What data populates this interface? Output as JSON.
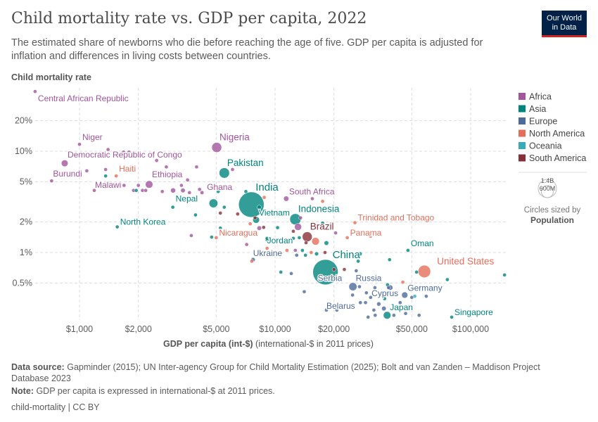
{
  "title": "Child mortality rate vs. GDP per capita, 2022",
  "subtitle": "The estimated share of newborns who die before reaching the age of five. GDP per capita is adjusted for inflation and differences in living costs between countries.",
  "logo": [
    "Our World",
    "in Data"
  ],
  "footer": {
    "source_label": "Data source:",
    "source": "Gapminder (2015); UN Inter-agency Group for Child Mortality Estimation (2025); Bolt and van Zanden – Maddison Project Database 2023",
    "note_label": "Note:",
    "note": "GDP per capita is expressed in international-$ at 2011 prices.",
    "credit": "child-mortality | CC BY"
  },
  "chart_data": {
    "type": "scatter",
    "title": "Child mortality rate vs. GDP per capita, 2022",
    "ylabel": "Child mortality rate",
    "xlabel_bold": "GDP per capita (int-$)",
    "xlabel_rest": "(international-$ in 2011 prices)",
    "x_scale": "log",
    "y_scale": "log",
    "xlim": [
      600,
      150000
    ],
    "ylim": [
      0.22,
      40
    ],
    "grid": true,
    "x_ticks": [
      {
        "v": 1000,
        "label": "$1,000"
      },
      {
        "v": 2000,
        "label": "$2,000"
      },
      {
        "v": 5000,
        "label": "$5,000"
      },
      {
        "v": 10000,
        "label": "$10,000"
      },
      {
        "v": 20000,
        "label": "$20,000"
      },
      {
        "v": 50000,
        "label": "$50,000"
      },
      {
        "v": 100000,
        "label": "$100,000"
      }
    ],
    "y_ticks": [
      {
        "v": 0.5,
        "label": "0.5%"
      },
      {
        "v": 1,
        "label": "1%"
      },
      {
        "v": 2,
        "label": "2%"
      },
      {
        "v": 5,
        "label": "5%"
      },
      {
        "v": 10,
        "label": "10%"
      },
      {
        "v": 20,
        "label": "20%"
      }
    ],
    "legend_position": "right",
    "regions": [
      {
        "name": "Africa",
        "color": "#a2559c"
      },
      {
        "name": "Asia",
        "color": "#00847e"
      },
      {
        "name": "Europe",
        "color": "#4c6a9c"
      },
      {
        "name": "North America",
        "color": "#e56e5a"
      },
      {
        "name": "Oceania",
        "color": "#38aaba"
      },
      {
        "name": "South America",
        "color": "#883039"
      }
    ],
    "size_legend": {
      "values": [
        "1.4B",
        "600M"
      ],
      "caption": "Circles sized by",
      "variable": "Population"
    },
    "points": [
      {
        "name": "Central African Republic",
        "region": "Africa",
        "gdp": 593,
        "cm": 38.9,
        "pop": 5,
        "label": true
      },
      {
        "name": "Niger",
        "region": "Africa",
        "gdp": 1000,
        "cm": 11.7,
        "pop": 26,
        "label": true
      },
      {
        "name": "Democratic Republic of Congo",
        "region": "Africa",
        "gdp": 840,
        "cm": 7.6,
        "pop": 99,
        "label": true
      },
      {
        "name": "Burundi",
        "region": "Africa",
        "gdp": 720,
        "cm": 5.1,
        "pop": 13,
        "label": true
      },
      {
        "name": "Haiti",
        "region": "North America",
        "gdp": 1540,
        "cm": 5.7,
        "pop": 11,
        "label": true
      },
      {
        "name": "Malawi",
        "region": "Africa",
        "gdp": 1190,
        "cm": 4.1,
        "pop": 20,
        "label": true
      },
      {
        "name": "Ethiopia",
        "region": "Africa",
        "gdp": 2270,
        "cm": 4.7,
        "pop": 123,
        "label": true
      },
      {
        "name": "Nigeria",
        "region": "Africa",
        "gdp": 5030,
        "cm": 10.9,
        "pop": 218,
        "label": true
      },
      {
        "name": "Pakistan",
        "region": "Asia",
        "gdp": 5500,
        "cm": 6.1,
        "pop": 235,
        "label": true
      },
      {
        "name": "Ghana",
        "region": "Africa",
        "gdp": 4230,
        "cm": 3.9,
        "pop": 33,
        "label": true
      },
      {
        "name": "Nepal",
        "region": "Asia",
        "gdp": 3000,
        "cm": 2.8,
        "pop": 30,
        "label": true
      },
      {
        "name": "North Korea",
        "region": "Asia",
        "gdp": 1560,
        "cm": 1.79,
        "pop": 26,
        "label": true
      },
      {
        "name": "India",
        "region": "Asia",
        "gdp": 7560,
        "cm": 2.97,
        "pop": 1420,
        "label": true
      },
      {
        "name": "Vietnam",
        "region": "Asia",
        "gdp": 8000,
        "cm": 2.1,
        "pop": 98,
        "label": true
      },
      {
        "name": "South Africa",
        "region": "Africa",
        "gdp": 11400,
        "cm": 3.4,
        "pop": 60,
        "label": true
      },
      {
        "name": "Indonesia",
        "region": "Asia",
        "gdp": 12700,
        "cm": 2.13,
        "pop": 275,
        "label": true
      },
      {
        "name": "Nicaragua",
        "region": "North America",
        "gdp": 5000,
        "cm": 1.4,
        "pop": 7,
        "label": true
      },
      {
        "name": "Jordan",
        "region": "Asia",
        "gdp": 9100,
        "cm": 1.33,
        "pop": 11,
        "label": true
      },
      {
        "name": "Brazil",
        "region": "South America",
        "gdp": 14600,
        "cm": 1.43,
        "pop": 215,
        "label": true
      },
      {
        "name": "Trinidad and Tobago",
        "region": "North America",
        "gdp": 25600,
        "cm": 1.97,
        "pop": 1.5,
        "label": true
      },
      {
        "name": "Panama",
        "region": "North America",
        "gdp": 23400,
        "cm": 1.4,
        "pop": 4.4,
        "label": true
      },
      {
        "name": "Oman",
        "region": "Asia",
        "gdp": 47800,
        "cm": 1.05,
        "pop": 4.6,
        "label": true
      },
      {
        "name": "China",
        "region": "Asia",
        "gdp": 18100,
        "cm": 0.64,
        "pop": 1410,
        "label": true
      },
      {
        "name": "Serbia",
        "region": "Europe",
        "gdp": 16800,
        "cm": 0.56,
        "pop": 7,
        "label": true
      },
      {
        "name": "Ukraine",
        "region": "Europe",
        "gdp": 7720,
        "cm": 0.85,
        "pop": 39,
        "label": true
      },
      {
        "name": "United States",
        "region": "North America",
        "gdp": 58000,
        "cm": 0.65,
        "pop": 338,
        "label": true
      },
      {
        "name": "Russia",
        "region": "Europe",
        "gdp": 25000,
        "cm": 0.46,
        "pop": 144,
        "label": true
      },
      {
        "name": "Germany",
        "region": "Europe",
        "gdp": 46000,
        "cm": 0.38,
        "pop": 83,
        "label": true
      },
      {
        "name": "Cyprus",
        "region": "Europe",
        "gdp": 38000,
        "cm": 0.45,
        "pop": 1.3,
        "label": true
      },
      {
        "name": "Belarus",
        "region": "Europe",
        "gdp": 18300,
        "cm": 0.27,
        "pop": 9,
        "label": true
      },
      {
        "name": "Japan",
        "region": "Asia",
        "gdp": 37400,
        "cm": 0.24,
        "pop": 124,
        "label": true
      },
      {
        "name": "Singapore",
        "region": "Asia",
        "gdp": 80000,
        "cm": 0.23,
        "pop": 6,
        "label": true
      },
      {
        "region": "Africa",
        "gdp": 1400,
        "cm": 10.4
      },
      {
        "region": "Africa",
        "gdp": 1680,
        "cm": 9.8
      },
      {
        "region": "Africa",
        "gdp": 1790,
        "cm": 9.8
      },
      {
        "region": "Africa",
        "gdp": 1090,
        "cm": 6.4
      },
      {
        "region": "Africa",
        "gdp": 1360,
        "cm": 6.6
      },
      {
        "region": "Asia",
        "gdp": 1360,
        "cm": 5.7
      },
      {
        "region": "Africa",
        "gdp": 1690,
        "cm": 4.6
      },
      {
        "region": "Africa",
        "gdp": 2000,
        "cm": 4.6
      },
      {
        "region": "Africa",
        "gdp": 1890,
        "cm": 4.1
      },
      {
        "region": "Asia",
        "gdp": 1950,
        "cm": 4.1
      },
      {
        "region": "Africa",
        "gdp": 2100,
        "cm": 4.1,
        "pop": 30
      },
      {
        "region": "Africa",
        "gdp": 2180,
        "cm": 4.1
      },
      {
        "region": "Africa",
        "gdp": 2480,
        "cm": 8.1
      },
      {
        "region": "Africa",
        "gdp": 2780,
        "cm": 7.0
      },
      {
        "region": "Africa",
        "gdp": 2650,
        "cm": 4.0
      },
      {
        "region": "Africa",
        "gdp": 3010,
        "cm": 4.1,
        "pop": 55
      },
      {
        "region": "Africa",
        "gdp": 3320,
        "cm": 4.6
      },
      {
        "region": "Africa",
        "gdp": 3380,
        "cm": 4.1,
        "pop": 45
      },
      {
        "region": "Africa",
        "gdp": 3570,
        "cm": 5.2
      },
      {
        "region": "Africa",
        "gdp": 3650,
        "cm": 3.9
      },
      {
        "region": "Africa",
        "gdp": 3970,
        "cm": 7.0
      },
      {
        "region": "Africa",
        "gdp": 4110,
        "cm": 4.2
      },
      {
        "region": "Asia",
        "gdp": 5120,
        "cm": 4.0
      },
      {
        "region": "Asia",
        "gdp": 4840,
        "cm": 3.06,
        "pop": 170
      },
      {
        "region": "Asia",
        "gdp": 5500,
        "cm": 2.8
      },
      {
        "region": "South America",
        "gdp": 5250,
        "cm": 2.45
      },
      {
        "region": "South America",
        "gdp": 6440,
        "cm": 2.4
      },
      {
        "region": "Africa",
        "gdp": 6060,
        "cm": 6.6
      },
      {
        "region": "Asia",
        "gdp": 7090,
        "cm": 4.0
      },
      {
        "region": "North America",
        "gdp": 8800,
        "cm": 3.5
      },
      {
        "region": "Asia",
        "gdp": 8300,
        "cm": 2.8,
        "pop": 40
      },
      {
        "region": "Asia",
        "gdp": 3920,
        "cm": 2.35
      },
      {
        "region": "Africa",
        "gdp": 3730,
        "cm": 1.47
      },
      {
        "region": "Asia",
        "gdp": 4740,
        "cm": 1.42
      },
      {
        "region": "Asia",
        "gdp": 5250,
        "cm": 1.74
      },
      {
        "region": "North America",
        "gdp": 7460,
        "cm": 1.92
      },
      {
        "region": "South America",
        "gdp": 7900,
        "cm": 2.2
      },
      {
        "region": "Africa",
        "gdp": 8300,
        "cm": 1.74,
        "pop": 45
      },
      {
        "region": "South America",
        "gdp": 8740,
        "cm": 1.77
      },
      {
        "region": "Africa",
        "gdp": 7160,
        "cm": 1.2
      },
      {
        "region": "Asia",
        "gdp": 9100,
        "cm": 1.38
      },
      {
        "region": "Asia",
        "gdp": 10300,
        "cm": 1.76
      },
      {
        "region": "South America",
        "gdp": 10100,
        "cm": 1.33
      },
      {
        "region": "Africa",
        "gdp": 15500,
        "cm": 3.4
      },
      {
        "region": "North America",
        "gdp": 17500,
        "cm": 3.2
      },
      {
        "region": "Africa",
        "gdp": 13500,
        "cm": 2.2
      },
      {
        "region": "Africa",
        "gdp": 13100,
        "cm": 1.79,
        "pop": 110
      },
      {
        "region": "South America",
        "gdp": 12400,
        "cm": 1.62
      },
      {
        "region": "Asia",
        "gdp": 13300,
        "cm": 1.4
      },
      {
        "region": "Asia",
        "gdp": 12400,
        "cm": 1.38
      },
      {
        "region": "Asia",
        "gdp": 17500,
        "cm": 1.95
      },
      {
        "region": "Africa",
        "gdp": 20400,
        "cm": 1.56
      },
      {
        "region": "South America",
        "gdp": 14400,
        "cm": 1.25,
        "pop": 30
      },
      {
        "region": "North America",
        "gdp": 16100,
        "cm": 1.29,
        "pop": 128
      },
      {
        "region": "Asia",
        "gdp": 18300,
        "cm": 1.24,
        "pop": 45
      },
      {
        "region": "North America",
        "gdp": 30800,
        "cm": 1.45
      },
      {
        "region": "North America",
        "gdp": 9100,
        "cm": 1.1
      },
      {
        "region": "North America",
        "gdp": 11500,
        "cm": 1.05
      },
      {
        "region": "Africa",
        "gdp": 12700,
        "cm": 1.05
      },
      {
        "region": "Asia",
        "gdp": 13800,
        "cm": 1.05
      },
      {
        "region": "Europe",
        "gdp": 12900,
        "cm": 0.94
      },
      {
        "region": "Asia",
        "gdp": 14300,
        "cm": 0.94
      },
      {
        "region": "North America",
        "gdp": 15300,
        "cm": 1.0
      },
      {
        "region": "Asia",
        "gdp": 16300,
        "cm": 0.97,
        "pop": 35
      },
      {
        "region": "South America",
        "gdp": 18000,
        "cm": 1.0,
        "pop": 20
      },
      {
        "region": "Asia",
        "gdp": 27200,
        "cm": 0.97,
        "pop": 36
      },
      {
        "region": "Asia",
        "gdp": 26600,
        "cm": 0.82,
        "pop": 20
      },
      {
        "region": "Asia",
        "gdp": 38500,
        "cm": 0.85
      },
      {
        "region": "North America",
        "gdp": 7600,
        "cm": 0.82
      },
      {
        "region": "Asia",
        "gdp": 10700,
        "cm": 0.64
      },
      {
        "region": "Europe",
        "gdp": 12100,
        "cm": 0.62
      },
      {
        "region": "South America",
        "gdp": 20000,
        "cm": 0.68
      },
      {
        "region": "South America",
        "gdp": 22600,
        "cm": 0.68
      },
      {
        "region": "Europe",
        "gdp": 26000,
        "cm": 0.66
      },
      {
        "region": "Asia",
        "gdp": 52900,
        "cm": 0.64
      },
      {
        "region": "Asia",
        "gdp": 76000,
        "cm": 0.54
      },
      {
        "region": "Asia",
        "gdp": 149000,
        "cm": 0.6
      },
      {
        "region": "North America",
        "gdp": 45000,
        "cm": 0.51
      },
      {
        "region": "Europe",
        "gdp": 27000,
        "cm": 0.46
      },
      {
        "region": "Europe",
        "gdp": 32400,
        "cm": 0.45
      },
      {
        "region": "Asia",
        "gdp": 37600,
        "cm": 0.48
      },
      {
        "region": "Europe",
        "gdp": 38800,
        "cm": 0.45,
        "pop": 60
      },
      {
        "region": "Europe",
        "gdp": 14100,
        "cm": 0.41
      },
      {
        "region": "Europe",
        "gdp": 24900,
        "cm": 0.38
      },
      {
        "region": "Europe",
        "gdp": 29300,
        "cm": 0.4
      },
      {
        "region": "Europe",
        "gdp": 30800,
        "cm": 0.36
      },
      {
        "region": "Asia",
        "gdp": 36300,
        "cm": 0.35
      },
      {
        "region": "Europe",
        "gdp": 50000,
        "cm": 0.36
      },
      {
        "region": "Oceania",
        "gdp": 51800,
        "cm": 0.37
      },
      {
        "region": "Europe",
        "gdp": 59300,
        "cm": 0.37
      },
      {
        "region": "Europe",
        "gdp": 27300,
        "cm": 0.32
      },
      {
        "region": "Europe",
        "gdp": 29000,
        "cm": 0.32
      },
      {
        "region": "Europe",
        "gdp": 33900,
        "cm": 0.31,
        "pop": 38
      },
      {
        "region": "Europe",
        "gdp": 43600,
        "cm": 0.32
      },
      {
        "region": "Europe",
        "gdp": 32000,
        "cm": 0.27
      },
      {
        "region": "Europe",
        "gdp": 36000,
        "cm": 0.28,
        "pop": 45
      },
      {
        "region": "Europe",
        "gdp": 40500,
        "cm": 0.24
      },
      {
        "region": "Europe",
        "gdp": 46500,
        "cm": 0.25
      },
      {
        "region": "Europe",
        "gdp": 54500,
        "cm": 0.24
      },
      {
        "region": "Europe",
        "gdp": 29900,
        "cm": 0.23
      },
      {
        "region": "Europe",
        "gdp": 32500,
        "cm": 0.24
      },
      {
        "region": "Europe",
        "gdp": 20700,
        "cm": 0.27
      }
    ]
  }
}
